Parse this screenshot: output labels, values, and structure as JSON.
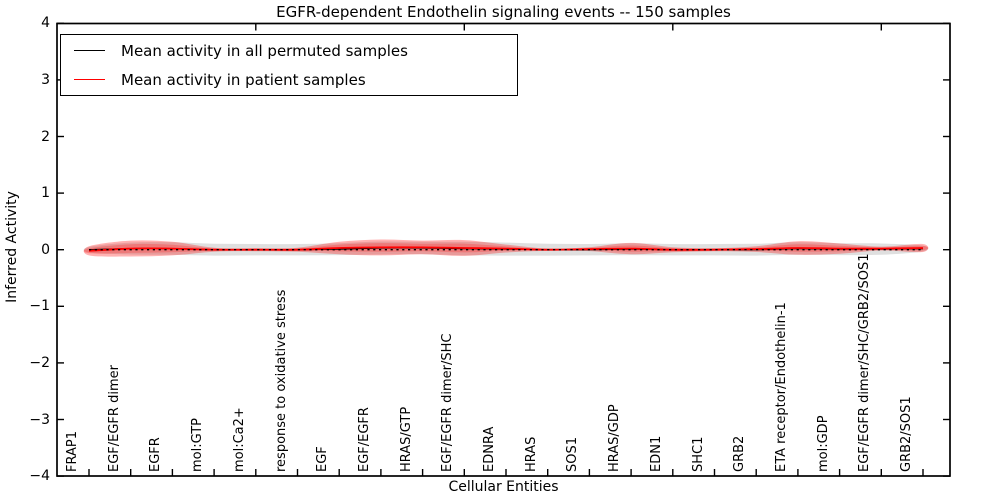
{
  "title": "EGFR-dependent Endothelin signaling events -- 150 samples",
  "axes": {
    "xlabel": "Cellular Entities",
    "ylabel": "Inferred Activity"
  },
  "legend": {
    "items": [
      {
        "label": "Mean activity in all permuted samples",
        "color": "#000000"
      },
      {
        "label": "Mean activity in patient samples",
        "color": "#ff0000"
      }
    ],
    "position": "upper left"
  },
  "chart_data": {
    "type": "line",
    "title": "EGFR-dependent Endothelin signaling events -- 150 samples",
    "xlabel": "Cellular Entities",
    "ylabel": "Inferred Activity",
    "ylim": [
      -4,
      4
    ],
    "yticks": [
      -4,
      -3,
      -2,
      -1,
      0,
      1,
      2,
      3,
      4
    ],
    "grid": false,
    "legend_position": "upper left",
    "categories": [
      "FRAP1",
      "EGF/EGFR dimer",
      "EGFR",
      "mol:GTP",
      "mol:Ca2+",
      "response to oxidative stress",
      "EGF",
      "EGF/EGFR",
      "HRAS/GTP",
      "EGF/EGFR dimer/SHC",
      "EDNRA",
      "HRAS",
      "SOS1",
      "HRAS/GDP",
      "EDN1",
      "SHC1",
      "GRB2",
      "ETA receptor/Endothelin-1",
      "mol:GDP",
      "EGF/EGFR dimer/SHC/GRB2/SOS1",
      "GRB2/SOS1"
    ],
    "series": [
      {
        "name": "Mean activity in all permuted samples",
        "color": "#000000",
        "line_style": "solid",
        "values": [
          0,
          0.02,
          0.02,
          0,
          0,
          0,
          0.01,
          0.03,
          0.03,
          0.02,
          0.01,
          0,
          0,
          0.01,
          0,
          0,
          0,
          0.02,
          0.01,
          0.01,
          0.02
        ],
        "band_std": [
          0.05,
          0.105,
          0.11,
          0.105,
          0.1,
          0.1,
          0.105,
          0.115,
          0.11,
          0.12,
          0.115,
          0.105,
          0.1,
          0.105,
          0.1,
          0.1,
          0.105,
          0.11,
          0.105,
          0.1,
          0.05
        ],
        "band_fill": "#808080",
        "band_alpha": 0.25
      },
      {
        "name": "Mean activity in patient samples",
        "color": "#ff0000",
        "line_style": "solid",
        "values": [
          -0.02,
          0.02,
          0.02,
          0,
          0,
          0,
          0.03,
          0.04,
          0.04,
          0.03,
          0.02,
          0,
          0.01,
          0.02,
          0,
          0,
          0.01,
          0.03,
          0.02,
          0.02,
          0.03
        ],
        "band_std": [
          0.08,
          0.14,
          0.12,
          0.035,
          0.027,
          0.035,
          0.11,
          0.14,
          0.12,
          0.14,
          0.07,
          0.02,
          0.035,
          0.1,
          0.045,
          0.027,
          0.05,
          0.12,
          0.09,
          0.035,
          0.07
        ],
        "band_fill": "#ff0000",
        "band_alpha": 0.3
      }
    ],
    "zero_line": {
      "y": 0,
      "style": "dotted",
      "color": "#000000"
    }
  }
}
